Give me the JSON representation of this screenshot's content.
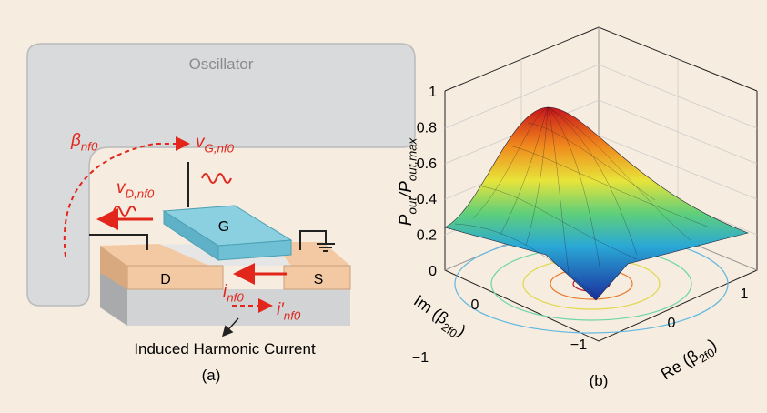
{
  "panel_a": {
    "oscillator": "Oscillator",
    "beta": [
      {
        "text": "β"
      },
      {
        "text": "nf0",
        "sub": true
      }
    ],
    "v_g": [
      {
        "text": "v"
      },
      {
        "text": "G,nf0",
        "sub": true
      }
    ],
    "v_d": [
      {
        "text": "v"
      },
      {
        "text": "D,nf0",
        "sub": true
      }
    ],
    "gate": "G",
    "drain": "D",
    "source": "S",
    "i_nf0": [
      {
        "text": "i"
      },
      {
        "text": "nf0",
        "sub": true
      }
    ],
    "i_prime": [
      {
        "text": "i′"
      },
      {
        "text": "nf0",
        "sub": true
      }
    ],
    "induced": "Induced Harmonic Current",
    "caption": "(a)"
  },
  "panel_b": {
    "z_label": [
      {
        "text": "P"
      },
      {
        "text": "out",
        "sub": true
      },
      {
        "text": "/P"
      },
      {
        "text": "out,max",
        "sub": true
      }
    ],
    "z_ticks": [
      "0",
      "0.2",
      "0.4",
      "0.6",
      "0.8",
      "1"
    ],
    "im_label": [
      {
        "text": "Im ("
      },
      {
        "text": "β"
      },
      {
        "text": "2f0",
        "sub": true
      },
      {
        "text": ")"
      }
    ],
    "im_ticks": [
      "−1",
      "0"
    ],
    "re_label": [
      {
        "text": "Re ("
      },
      {
        "text": "β"
      },
      {
        "text": "2f0",
        "sub": true
      },
      {
        "text": ")"
      }
    ],
    "re_ticks": [
      "−1",
      "0",
      "1"
    ],
    "caption": "(b)"
  }
}
